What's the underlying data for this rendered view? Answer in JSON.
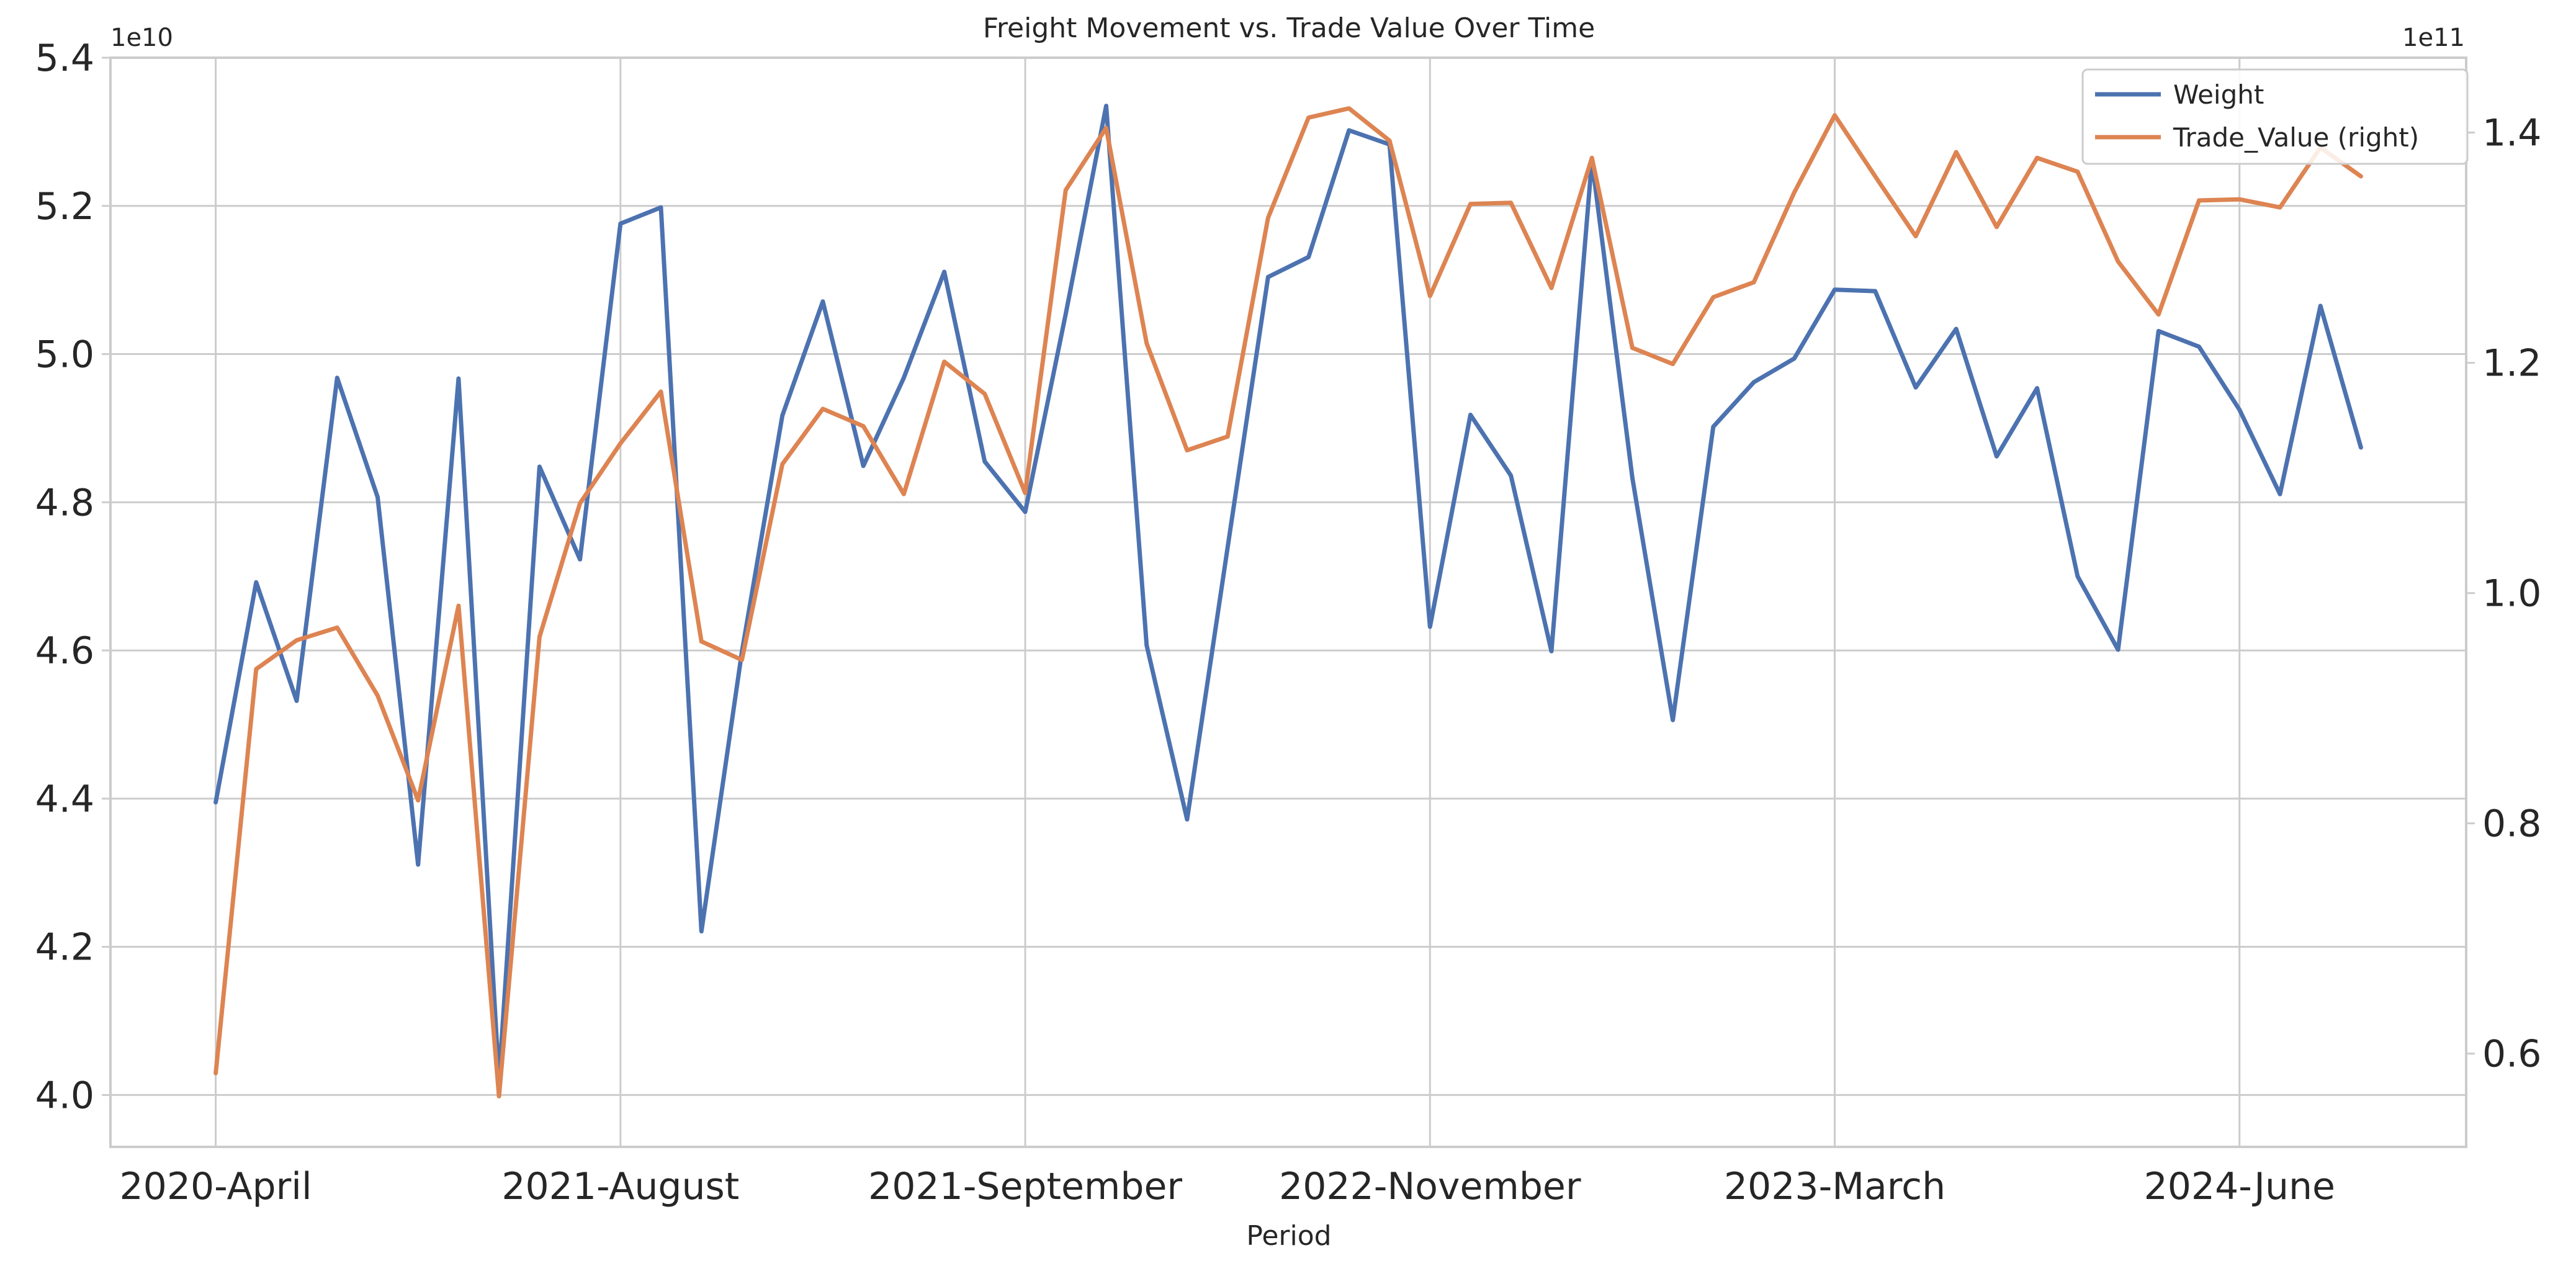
{
  "chart_data": {
    "type": "line",
    "title": "Freight Movement vs. Trade Value Over Time",
    "xlabel": "Period",
    "x_tick_labels": [
      "2020-April",
      "2021-August",
      "2021-September",
      "2022-November",
      "2023-March",
      "2024-June"
    ],
    "x_tick_positions": [
      0,
      10,
      20,
      30,
      40,
      50
    ],
    "x_range": [
      -2.6,
      55.6
    ],
    "left_axis": {
      "exponent_label": "1e10",
      "ylim": [
        3.93,
        5.4
      ],
      "ticks": [
        4.0,
        4.2,
        4.4,
        4.6,
        4.8,
        5.0,
        5.2,
        5.4
      ],
      "tick_labels": [
        "4.0",
        "4.2",
        "4.4",
        "4.6",
        "4.8",
        "5.0",
        "5.2",
        "5.4"
      ]
    },
    "right_axis": {
      "exponent_label": "1e11",
      "ylim": [
        0.519,
        1.465
      ],
      "ticks": [
        0.6,
        0.8,
        1.0,
        1.2,
        1.4
      ],
      "tick_labels": [
        "0.6",
        "0.8",
        "1.0",
        "1.2",
        "1.4"
      ]
    },
    "grid": true,
    "legend_position": "top-right",
    "series": [
      {
        "name": "Weight",
        "axis": "left",
        "color": "#4c72b0",
        "values": [
          4.395,
          4.692,
          4.532,
          4.968,
          4.807,
          4.311,
          4.967,
          4.02,
          4.848,
          4.723,
          5.176,
          5.198,
          4.221,
          4.598,
          4.917,
          5.071,
          4.849,
          4.968,
          5.111,
          4.855,
          4.787,
          5.054,
          5.335,
          4.607,
          4.372,
          4.739,
          5.104,
          5.131,
          5.302,
          5.283,
          4.632,
          4.918,
          4.836,
          4.599,
          5.262,
          4.833,
          4.506,
          4.902,
          4.962,
          4.994,
          5.087,
          5.085,
          4.955,
          5.034,
          4.862,
          4.954,
          4.7,
          4.601,
          5.031,
          5.01,
          4.925,
          4.811,
          5.065,
          4.874
        ]
      },
      {
        "name": "Trade_Value (right)",
        "axis": "right",
        "color": "#dd8452",
        "values": [
          0.583,
          0.934,
          0.959,
          0.97,
          0.911,
          0.82,
          0.989,
          0.563,
          0.962,
          1.078,
          1.13,
          1.175,
          0.958,
          0.942,
          1.112,
          1.16,
          1.145,
          1.086,
          1.201,
          1.173,
          1.087,
          1.35,
          1.404,
          1.217,
          1.124,
          1.136,
          1.326,
          1.413,
          1.421,
          1.393,
          1.258,
          1.338,
          1.339,
          1.265,
          1.378,
          1.213,
          1.199,
          1.257,
          1.27,
          1.348,
          1.415,
          1.362,
          1.31,
          1.383,
          1.318,
          1.378,
          1.366,
          1.288,
          1.242,
          1.341,
          1.342,
          1.335,
          1.387,
          1.362
        ]
      }
    ]
  }
}
